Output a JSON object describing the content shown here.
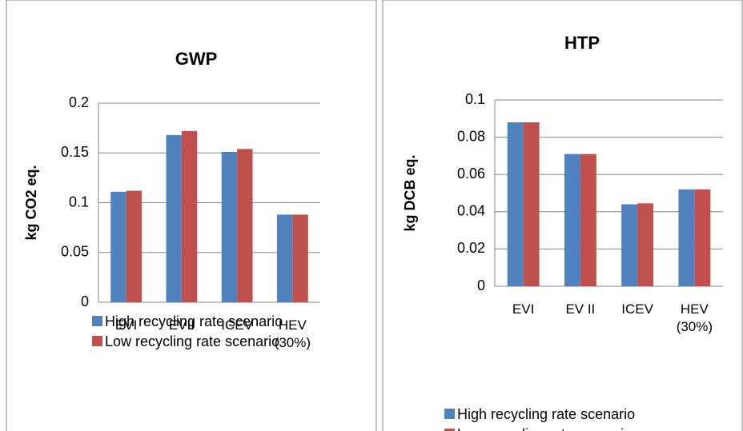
{
  "chart_data": [
    {
      "type": "bar",
      "title": "GWP",
      "y_label": "kg CO2 eq.",
      "categories": [
        "EVI",
        "EVII",
        "ICEV",
        "HEV (30%)"
      ],
      "series": [
        {
          "name": "High recycling rate scenario",
          "color": "#4f81bd",
          "values": [
            0.111,
            0.168,
            0.151,
            0.088
          ]
        },
        {
          "name": "Low recycling rate scenario",
          "color": "#c0504d",
          "values": [
            0.112,
            0.172,
            0.154,
            0.088
          ]
        }
      ],
      "ylim": [
        0,
        0.2
      ],
      "yticks": [
        0,
        0.05,
        0.1,
        0.15,
        0.2
      ],
      "grid": true,
      "legend": "bottom"
    },
    {
      "type": "bar",
      "title": "HTP",
      "y_label": "kg DCB eq.",
      "categories": [
        "EVI",
        "EV II",
        "ICEV",
        "HEV (30%)"
      ],
      "series": [
        {
          "name": "High recycling rate scenario",
          "color": "#4f81bd",
          "values": [
            0.088,
            0.071,
            0.044,
            0.052
          ]
        },
        {
          "name": "Low recycling rate scenario",
          "color": "#c0504d",
          "values": [
            0.088,
            0.071,
            0.0445,
            0.052
          ]
        }
      ],
      "ylim": [
        0,
        0.1
      ],
      "yticks": [
        0,
        0.02,
        0.04,
        0.06,
        0.08,
        0.1
      ],
      "grid": true,
      "legend": "bottom"
    }
  ]
}
